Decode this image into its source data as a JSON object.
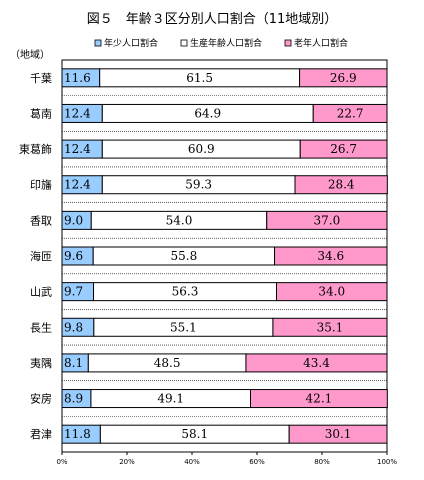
{
  "chart_data": {
    "type": "bar",
    "stacked": true,
    "orientation": "horizontal",
    "title": "図５　年齢３区分別人口割合（11地域別）",
    "ylabel": "（地域）",
    "xlim": [
      0,
      100
    ],
    "x_ticks": [
      "0%",
      "20%",
      "40%",
      "60%",
      "80%",
      "100%"
    ],
    "categories": [
      "千葉",
      "葛南",
      "東葛飾",
      "印旛",
      "香取",
      "海匝",
      "山武",
      "長生",
      "夷隅",
      "安房",
      "君津"
    ],
    "series": [
      {
        "name": "年少人口割合",
        "color": "#99ccff",
        "values": [
          11.6,
          12.4,
          12.4,
          12.4,
          9.0,
          9.6,
          9.7,
          9.8,
          8.1,
          8.9,
          11.8
        ],
        "labels": [
          "11.6",
          "12.4",
          "12.4",
          "12.4",
          "9.0",
          "9.6",
          "9.7",
          "9.8",
          "8.1",
          "8.9",
          "11.8"
        ]
      },
      {
        "name": "生産年齢人口割合",
        "color": "#ffffff",
        "values": [
          61.5,
          64.9,
          60.9,
          59.3,
          54.0,
          55.8,
          56.3,
          55.1,
          48.5,
          49.1,
          58.1
        ],
        "labels": [
          "61.5",
          "64.9",
          "60.9",
          "59.3",
          "54.0",
          "55.8",
          "56.3",
          "55.1",
          "48.5",
          "49.1",
          "58.1"
        ]
      },
      {
        "name": "老年人口割合",
        "color": "#ff99cc",
        "values": [
          26.9,
          22.7,
          26.7,
          28.4,
          37.0,
          34.6,
          34.0,
          35.1,
          43.4,
          42.1,
          30.1
        ],
        "labels": [
          "26.9",
          "22.7",
          "26.7",
          "28.4",
          "37.0",
          "34.6",
          "34.0",
          "35.1",
          "43.4",
          "42.1",
          "30.1"
        ]
      }
    ],
    "grid": true,
    "legend": "top"
  }
}
